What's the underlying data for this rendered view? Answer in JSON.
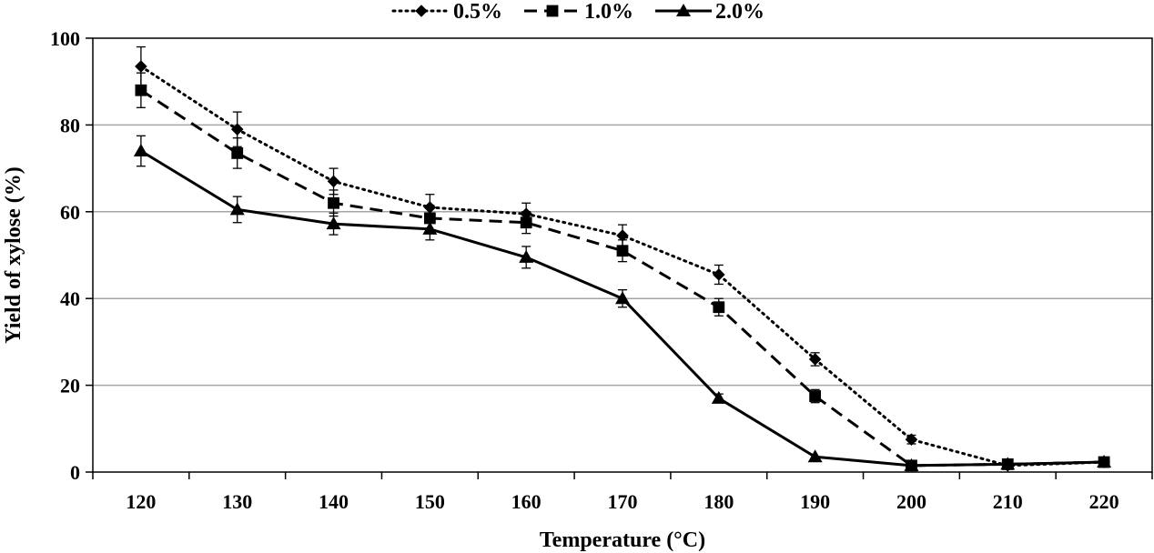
{
  "chart_data": {
    "type": "line",
    "title": "",
    "xlabel": "Temperature (°C)",
    "ylabel": "Yield of xylose (%)",
    "categories": [
      "120",
      "130",
      "140",
      "150",
      "160",
      "170",
      "180",
      "190",
      "200",
      "210",
      "220"
    ],
    "ylim": [
      0,
      100
    ],
    "yticks": [
      0,
      20,
      40,
      60,
      80,
      100
    ],
    "grid": "horizontal",
    "legend_position": "top",
    "series": [
      {
        "name": "0.5%",
        "marker": "diamond",
        "line_style": "dotted",
        "values": [
          93.5,
          79,
          67,
          61,
          59.5,
          54.5,
          45.5,
          26,
          7.5,
          1.5,
          2.3
        ],
        "errors": [
          4.5,
          4,
          3,
          3,
          2.5,
          2.5,
          2.2,
          1.5,
          1,
          0.5,
          0.5
        ]
      },
      {
        "name": "1.0%",
        "marker": "square",
        "line_style": "dashed",
        "values": [
          88,
          73.5,
          62,
          58.5,
          57.5,
          51,
          38,
          17.5,
          1.5,
          1.8,
          2.3
        ],
        "errors": [
          4,
          3.5,
          3,
          3,
          2.5,
          2.5,
          2,
          1.5,
          0.5,
          0.5,
          0.5
        ]
      },
      {
        "name": "2.0%",
        "marker": "triangle",
        "line_style": "solid",
        "values": [
          74,
          60.5,
          57.2,
          56,
          49.5,
          40,
          17,
          3.5,
          1.5,
          1.8,
          2.3
        ],
        "errors": [
          3.5,
          3,
          2.5,
          2.5,
          2.5,
          2,
          1,
          0.5,
          0.5,
          0.5,
          0.5
        ]
      }
    ],
    "colors": {
      "lines": "#000000",
      "grid": "#a6a6a6",
      "frame": "#000000"
    }
  }
}
